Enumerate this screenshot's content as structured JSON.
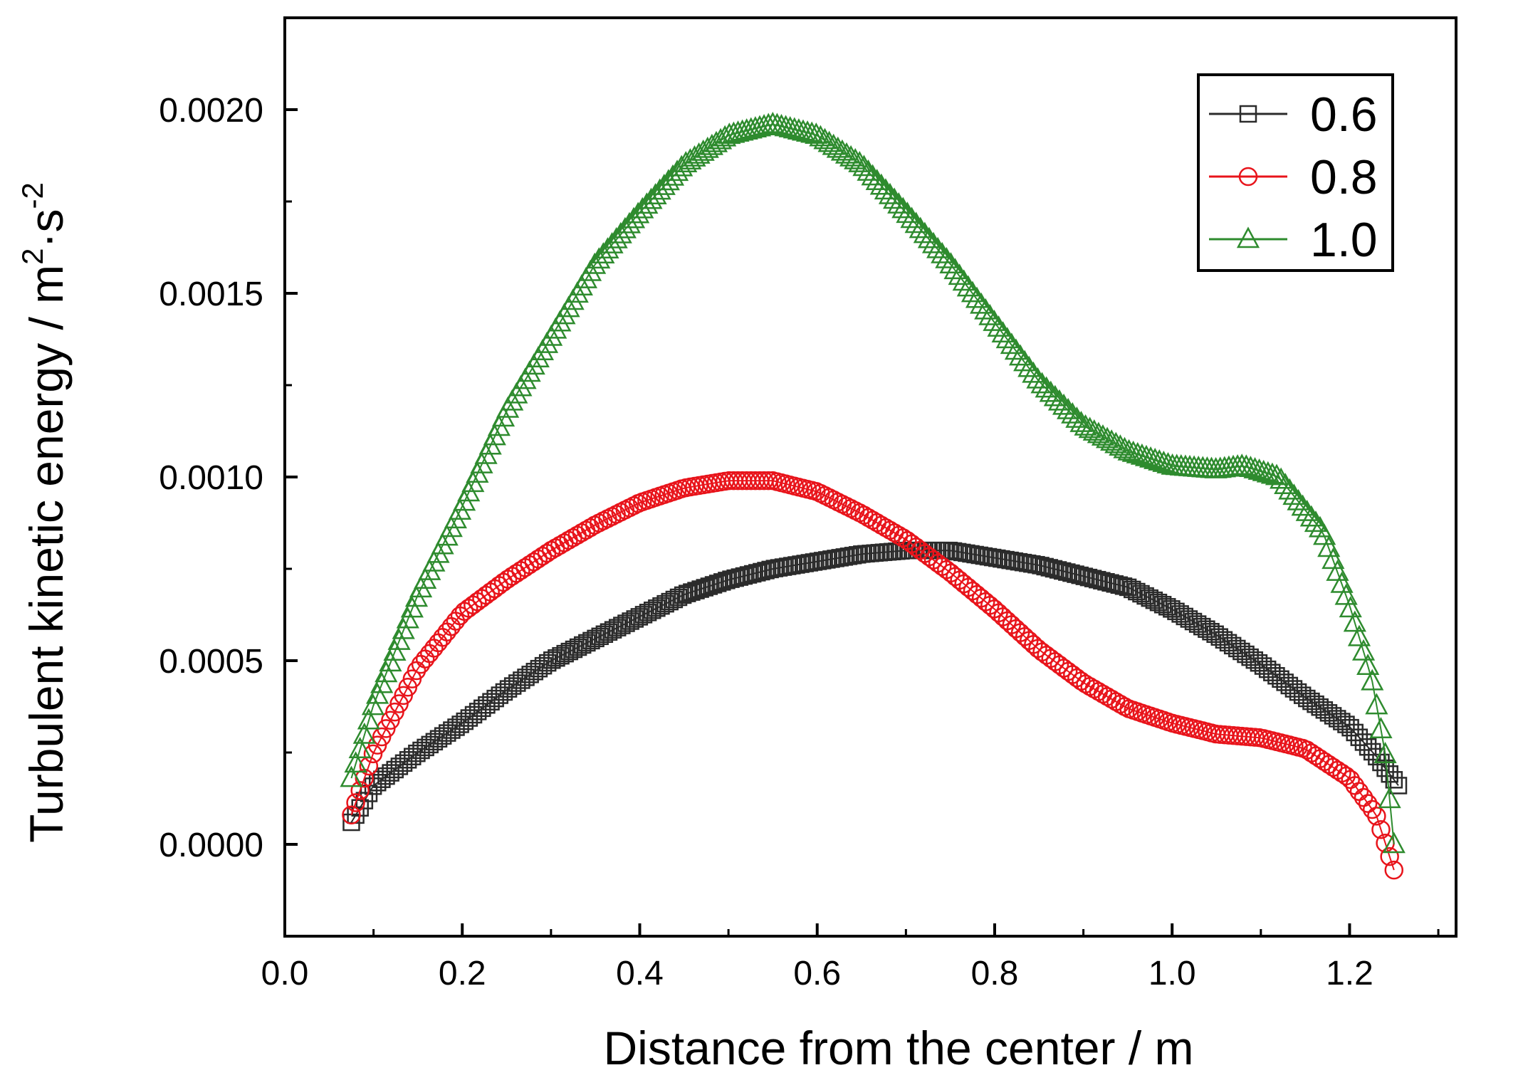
{
  "chart_data": {
    "type": "scatter",
    "title": "",
    "xlabel": "Distance from the center / m",
    "ylabel": {
      "text": "Turbulent kinetic energy / m",
      "sup1": "2",
      "mid": "·s",
      "sup2": "-2"
    },
    "xlim": [
      0.0,
      1.32
    ],
    "ylim": [
      -0.00025,
      0.00225
    ],
    "x_ticks": [
      0.0,
      0.2,
      0.4,
      0.6,
      0.8,
      1.0,
      1.2
    ],
    "x_tick_labels": [
      "0.0",
      "0.2",
      "0.4",
      "0.6",
      "0.8",
      "1.0",
      "1.2"
    ],
    "y_ticks": [
      0.0,
      0.0005,
      0.001,
      0.0015,
      0.002
    ],
    "y_tick_labels": [
      "0.0000",
      "0.0005",
      "0.0010",
      "0.0015",
      "0.0020"
    ],
    "legend_position": "top-right",
    "series": [
      {
        "name": "0.6",
        "marker": "square",
        "color": "#2b2b2b",
        "curve": [
          [
            0.075,
            6e-05
          ],
          [
            0.1,
            0.00016
          ],
          [
            0.15,
            0.00025
          ],
          [
            0.2,
            0.00033
          ],
          [
            0.25,
            0.00042
          ],
          [
            0.3,
            0.0005
          ],
          [
            0.35,
            0.00056
          ],
          [
            0.4,
            0.00062
          ],
          [
            0.45,
            0.00068
          ],
          [
            0.5,
            0.00072
          ],
          [
            0.55,
            0.00075
          ],
          [
            0.6,
            0.00077
          ],
          [
            0.65,
            0.00079
          ],
          [
            0.7,
            0.0008
          ],
          [
            0.75,
            0.0008
          ],
          [
            0.8,
            0.00078
          ],
          [
            0.85,
            0.00076
          ],
          [
            0.9,
            0.00073
          ],
          [
            0.95,
            0.0007
          ],
          [
            1.0,
            0.00064
          ],
          [
            1.05,
            0.00057
          ],
          [
            1.1,
            0.00049
          ],
          [
            1.15,
            0.0004
          ],
          [
            1.2,
            0.00032
          ],
          [
            1.23,
            0.00024
          ],
          [
            1.255,
            0.00016
          ]
        ]
      },
      {
        "name": "0.8",
        "marker": "circle",
        "color": "#e8141b",
        "curve": [
          [
            0.075,
            8e-05
          ],
          [
            0.1,
            0.00025
          ],
          [
            0.15,
            0.00048
          ],
          [
            0.2,
            0.00063
          ],
          [
            0.25,
            0.00072
          ],
          [
            0.3,
            0.0008
          ],
          [
            0.35,
            0.00087
          ],
          [
            0.4,
            0.00093
          ],
          [
            0.45,
            0.00097
          ],
          [
            0.5,
            0.00099
          ],
          [
            0.55,
            0.00099
          ],
          [
            0.6,
            0.00096
          ],
          [
            0.65,
            0.0009
          ],
          [
            0.7,
            0.00083
          ],
          [
            0.75,
            0.00074
          ],
          [
            0.8,
            0.00064
          ],
          [
            0.85,
            0.00053
          ],
          [
            0.9,
            0.00044
          ],
          [
            0.95,
            0.00037
          ],
          [
            1.0,
            0.00033
          ],
          [
            1.05,
            0.0003
          ],
          [
            1.1,
            0.00029
          ],
          [
            1.15,
            0.00026
          ],
          [
            1.2,
            0.00018
          ],
          [
            1.23,
            8e-05
          ],
          [
            1.25,
            -7e-05
          ]
        ]
      },
      {
        "name": "1.0",
        "marker": "triangle",
        "color": "#2e8b2e",
        "curve": [
          [
            0.075,
            0.00018
          ],
          [
            0.1,
            0.00038
          ],
          [
            0.15,
            0.00068
          ],
          [
            0.2,
            0.00092
          ],
          [
            0.25,
            0.00118
          ],
          [
            0.3,
            0.00138
          ],
          [
            0.35,
            0.00158
          ],
          [
            0.4,
            0.00172
          ],
          [
            0.45,
            0.00185
          ],
          [
            0.5,
            0.00193
          ],
          [
            0.55,
            0.00196
          ],
          [
            0.6,
            0.00193
          ],
          [
            0.65,
            0.00185
          ],
          [
            0.7,
            0.00172
          ],
          [
            0.75,
            0.00158
          ],
          [
            0.8,
            0.00142
          ],
          [
            0.85,
            0.00126
          ],
          [
            0.9,
            0.00114
          ],
          [
            0.95,
            0.00107
          ],
          [
            1.0,
            0.00103
          ],
          [
            1.05,
            0.00102
          ],
          [
            1.08,
            0.00103
          ],
          [
            1.12,
            0.001
          ],
          [
            1.17,
            0.00085
          ],
          [
            1.2,
            0.00065
          ],
          [
            1.225,
            0.00045
          ],
          [
            1.24,
            0.00025
          ],
          [
            1.25,
            0.0
          ]
        ]
      }
    ]
  }
}
